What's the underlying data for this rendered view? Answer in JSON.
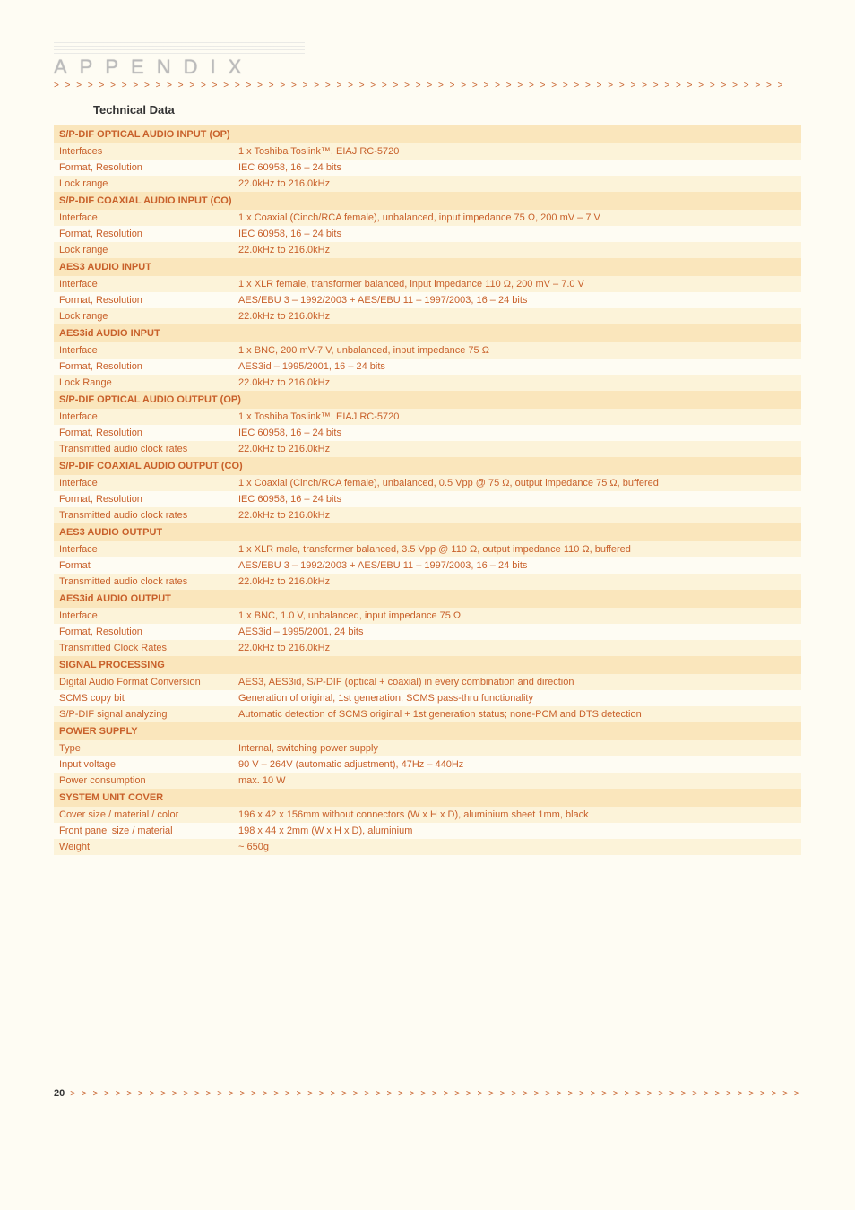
{
  "header": {
    "title": "APPENDIX"
  },
  "section_title": "Technical Data",
  "sections": [
    {
      "header": "S/P-DIF OPTICAL AUDIO INPUT (OP)",
      "rows": [
        {
          "k": "Interfaces",
          "v": "1 x Toshiba Toslink™, EIAJ RC-5720"
        },
        {
          "k": "Format, Resolution",
          "v": "IEC 60958, 16 – 24 bits"
        },
        {
          "k": "Lock range",
          "v": "22.0kHz to 216.0kHz"
        }
      ]
    },
    {
      "header": "S/P-DIF COAXIAL AUDIO INPUT (CO)",
      "rows": [
        {
          "k": "Interface",
          "v": "1 x Coaxial (Cinch/RCA female), unbalanced, input impedance 75 Ω, 200 mV – 7 V"
        },
        {
          "k": "Format, Resolution",
          "v": "IEC 60958, 16 – 24 bits"
        },
        {
          "k": "Lock range",
          "v": "22.0kHz to 216.0kHz"
        }
      ]
    },
    {
      "header": "AES3 AUDIO INPUT",
      "rows": [
        {
          "k": "Interface",
          "v": "1 x XLR female, transformer balanced, input impedance 110 Ω, 200 mV – 7.0 V"
        },
        {
          "k": "Format, Resolution",
          "v": "AES/EBU 3 – 1992/2003 + AES/EBU 11 – 1997/2003, 16 – 24 bits"
        },
        {
          "k": "Lock range",
          "v": "22.0kHz to 216.0kHz"
        }
      ]
    },
    {
      "header": "AES3id AUDIO INPUT",
      "rows": [
        {
          "k": "Interface",
          "v": "1 x BNC, 200 mV-7 V, unbalanced, input impedance 75 Ω"
        },
        {
          "k": "Format, Resolution",
          "v": "AES3id – 1995/2001, 16 – 24 bits"
        },
        {
          "k": "Lock Range",
          "v": "22.0kHz to 216.0kHz"
        }
      ]
    },
    {
      "header": "S/P-DIF OPTICAL AUDIO OUTPUT (OP)",
      "rows": [
        {
          "k": "Interface",
          "v": "1 x Toshiba Toslink™, EIAJ RC-5720"
        },
        {
          "k": "Format, Resolution",
          "v": "IEC 60958, 16 – 24 bits"
        },
        {
          "k": "Transmitted audio clock rates",
          "v": "22.0kHz to 216.0kHz"
        }
      ]
    },
    {
      "header": "S/P-DIF COAXIAL AUDIO OUTPUT (CO)",
      "rows": [
        {
          "k": "Interface",
          "v": "1 x Coaxial (Cinch/RCA female), unbalanced, 0.5 Vpp @ 75 Ω, output impedance 75 Ω, buffered"
        },
        {
          "k": "Format, Resolution",
          "v": "IEC 60958, 16 – 24 bits"
        },
        {
          "k": "Transmitted audio clock rates",
          "v": "22.0kHz to 216.0kHz"
        }
      ]
    },
    {
      "header": "AES3 AUDIO OUTPUT",
      "rows": [
        {
          "k": "Interface",
          "v": "1 x XLR male, transformer balanced, 3.5 Vpp @ 110 Ω, output impedance 110 Ω, buffered"
        },
        {
          "k": "Format",
          "v": "AES/EBU 3 – 1992/2003 + AES/EBU 11 – 1997/2003, 16 – 24 bits"
        },
        {
          "k": "Transmitted audio clock rates",
          "v": "22.0kHz to 216.0kHz"
        }
      ]
    },
    {
      "header": "AES3id AUDIO OUTPUT",
      "rows": [
        {
          "k": "Interface",
          "v": "1 x BNC, 1.0 V, unbalanced, input impedance 75 Ω"
        },
        {
          "k": "Format, Resolution",
          "v": "AES3id – 1995/2001, 24 bits"
        },
        {
          "k": "Transmitted Clock Rates",
          "v": "22.0kHz to 216.0kHz"
        }
      ]
    },
    {
      "header": "SIGNAL PROCESSING",
      "rows": [
        {
          "k": "Digital Audio Format Conversion",
          "v": "AES3, AES3id, S/P-DIF (optical + coaxial) in every combination and direction"
        },
        {
          "k": "SCMS copy bit",
          "v": "Generation of original, 1st generation, SCMS pass-thru functionality"
        },
        {
          "k": "S/P-DIF signal analyzing",
          "v": "Automatic detection of SCMS original + 1st generation status; none-PCM and DTS detection"
        }
      ]
    },
    {
      "header": "POWER SUPPLY",
      "rows": [
        {
          "k": "Type",
          "v": "Internal, switching power supply"
        },
        {
          "k": "Input voltage",
          "v": "90 V – 264V (automatic adjustment), 47Hz – 440Hz"
        },
        {
          "k": "Power consumption",
          "v": "max. 10 W"
        }
      ]
    },
    {
      "header": "SYSTEM UNIT COVER",
      "rows": [
        {
          "k": "Cover size / material / color",
          "v": "196 x 42 x 156mm without connectors (W x H x D), aluminium sheet 1mm, black"
        },
        {
          "k": "Front panel size / material",
          "v": "198 x 44 x 2mm (W x H x D), aluminium"
        },
        {
          "k": "Weight",
          "v": "~ 650g"
        }
      ]
    }
  ],
  "footer": {
    "page": "20"
  }
}
